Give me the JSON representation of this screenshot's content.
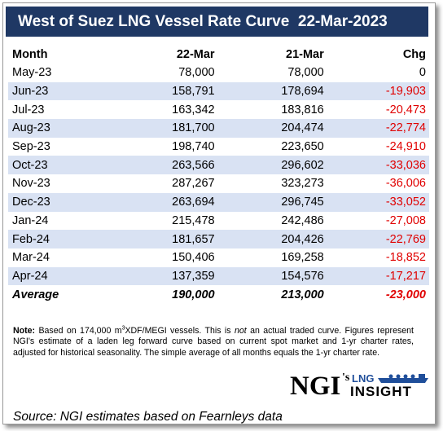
{
  "title": "West of Suez LNG Vessel Rate Curve  22-Mar-2023",
  "table": {
    "headers": [
      "Month",
      "22-Mar",
      "21-Mar",
      "Chg"
    ],
    "rows": [
      {
        "month": "May-23",
        "v1": "78,000",
        "v2": "78,000",
        "chg": "0",
        "neg": false
      },
      {
        "month": "Jun-23",
        "v1": "158,791",
        "v2": "178,694",
        "chg": "-19,903",
        "neg": true
      },
      {
        "month": "Jul-23",
        "v1": "163,342",
        "v2": "183,816",
        "chg": "-20,473",
        "neg": true
      },
      {
        "month": "Aug-23",
        "v1": "181,700",
        "v2": "204,474",
        "chg": "-22,774",
        "neg": true
      },
      {
        "month": "Sep-23",
        "v1": "198,740",
        "v2": "223,650",
        "chg": "-24,910",
        "neg": true
      },
      {
        "month": "Oct-23",
        "v1": "263,566",
        "v2": "296,602",
        "chg": "-33,036",
        "neg": true
      },
      {
        "month": "Nov-23",
        "v1": "287,267",
        "v2": "323,273",
        "chg": "-36,006",
        "neg": true
      },
      {
        "month": "Dec-23",
        "v1": "263,694",
        "v2": "296,745",
        "chg": "-33,052",
        "neg": true
      },
      {
        "month": "Jan-24",
        "v1": "215,478",
        "v2": "242,486",
        "chg": "-27,008",
        "neg": true
      },
      {
        "month": "Feb-24",
        "v1": "181,657",
        "v2": "204,426",
        "chg": "-22,769",
        "neg": true
      },
      {
        "month": "Mar-24",
        "v1": "150,406",
        "v2": "169,258",
        "chg": "-18,852",
        "neg": true
      },
      {
        "month": "Apr-24",
        "v1": "137,359",
        "v2": "154,576",
        "chg": "-17,217",
        "neg": true
      }
    ],
    "average": {
      "label": "Average",
      "v1": "190,000",
      "v2": "213,000",
      "chg": "-23,000"
    }
  },
  "note": {
    "label": "Note:",
    "part1": " Based on 174,000 m",
    "sup": "3",
    "part2": "XDF/MEGI vessels. This is ",
    "italic": "not",
    "part3": " an actual traded curve. Figures represent NGI's estimate of a laden leg forward curve based on current spot market and 1-yr charter rates, adjusted for historical seasonality. The simple average of all months equals the 1-yr charter rate."
  },
  "logo": {
    "ngi": "NGI",
    "apostrophe_s": "'s",
    "lng": "LNG",
    "insight": "INSIGHT"
  },
  "source": "Source: NGI estimates based on Fearnleys data",
  "colors": {
    "title_bg": "#1f3864",
    "row_shade": "#d9e2f3",
    "negative": "#e00000",
    "logo_blue": "#1f4e9a"
  }
}
